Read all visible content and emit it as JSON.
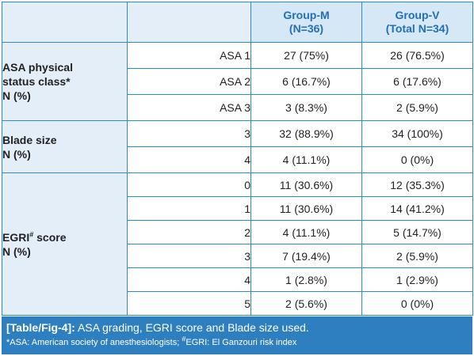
{
  "header": {
    "col1": "",
    "col2": "",
    "group_m": "Group-M",
    "group_m_n": "(N=36)",
    "group_v": "Group-V",
    "group_v_n": "(Total N=34)"
  },
  "sections": [
    {
      "label_lines": [
        "ASA physical",
        "status class*",
        "N (%)"
      ],
      "rows": [
        {
          "sub": "ASA 1",
          "m": "27 (75%)",
          "v": "26 (76.5%)"
        },
        {
          "sub": "ASA 2",
          "m": "6 (16.7%)",
          "v": "6 (17.6%)"
        },
        {
          "sub": "ASA 3",
          "m": "3 (8.3%)",
          "v": "2 (5.9%)"
        }
      ]
    },
    {
      "label_lines": [
        "Blade size",
        "N (%)"
      ],
      "rows": [
        {
          "sub": "3",
          "m": "32 (88.9%)",
          "v": "34 (100%)"
        },
        {
          "sub": "4",
          "m": "4 (11.1%)",
          "v": "0 (0%)"
        }
      ]
    },
    {
      "label_main": "EGRI",
      "label_sup": "#",
      "label_after": " score",
      "label_line2": "N (%)",
      "rows": [
        {
          "sub": "0",
          "m": "11 (30.6%)",
          "v": "12 (35.3%)"
        },
        {
          "sub": "1",
          "m": "11 (30.6%)",
          "v": "14 (41.2%)"
        },
        {
          "sub": "2",
          "m": "4 (11.1%)",
          "v": "5 (14.7%)"
        },
        {
          "sub": "3",
          "m": "7 (19.4%)",
          "v": "2 (5.9%)"
        },
        {
          "sub": "4",
          "m": "1 (2.8%)",
          "v": "1 (2.9%)"
        },
        {
          "sub": "5",
          "m": "2 (5.6%)",
          "v": "0 (0%)"
        }
      ]
    }
  ],
  "caption": {
    "label": "[Table/Fig-4]:",
    "text": " ASA grading, EGRI score and Blade size used.",
    "note_part1": "*ASA: American society of anesthesiologists; ",
    "note_sup": "#",
    "note_part2": "EGRI: El Ganzouri risk index"
  },
  "colors": {
    "border": "#2e8bc9",
    "header_bg": "#d6e7f5",
    "header_text": "#2070b8",
    "caption_bg": "#2d7fc0"
  }
}
